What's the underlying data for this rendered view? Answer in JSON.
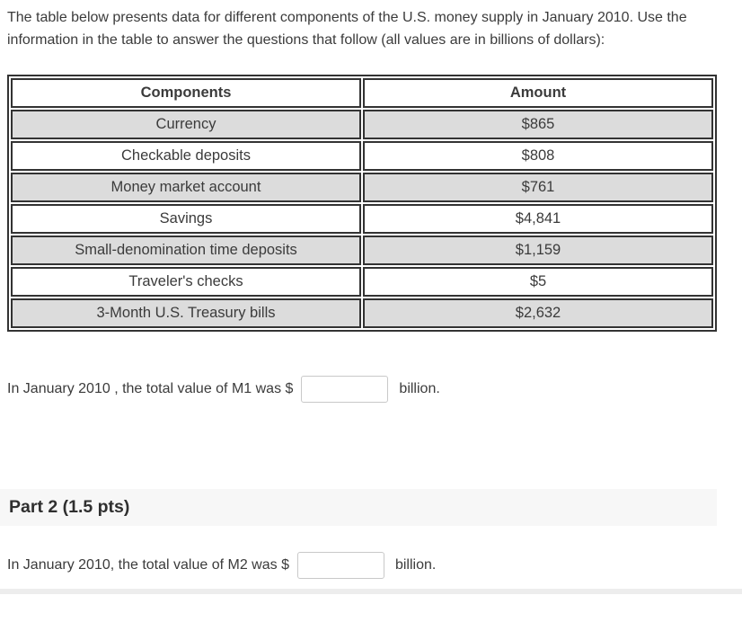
{
  "intro_text": "The table below presents data for different components of the U.S. money supply in January 2010. Use the information in the table to answer the questions that follow (all values are in billions of dollars):",
  "money_table": {
    "headers": {
      "components": "Components",
      "amount": "Amount"
    },
    "rows": [
      {
        "component": "Currency",
        "amount": "$865"
      },
      {
        "component": "Checkable deposits",
        "amount": "$808"
      },
      {
        "component": "Money market account",
        "amount": "$761"
      },
      {
        "component": "Savings",
        "amount": "$4,841"
      },
      {
        "component": "Small-denomination time deposits",
        "amount": "$1,159"
      },
      {
        "component": "Traveler's checks",
        "amount": "$5"
      },
      {
        "component": "3-Month U.S. Treasury bills",
        "amount": "$2,632"
      }
    ]
  },
  "part1_question": {
    "prefix": "In January 2010 , the total value of M1 was $",
    "suffix": "billion.",
    "input_value": ""
  },
  "part2_header": {
    "title": "Part 2 (1.5 pts)"
  },
  "part2_question": {
    "prefix": "In January 2010, the total value of M2 was $",
    "suffix": "billion.",
    "input_value": ""
  },
  "colors": {
    "text": "#3b3b3b",
    "table_border": "#333333",
    "shaded_row": "#dcdcdc",
    "section_band": "#f7f7f7",
    "bottom_divider": "#ededed",
    "input_border": "#c9c9c9"
  }
}
